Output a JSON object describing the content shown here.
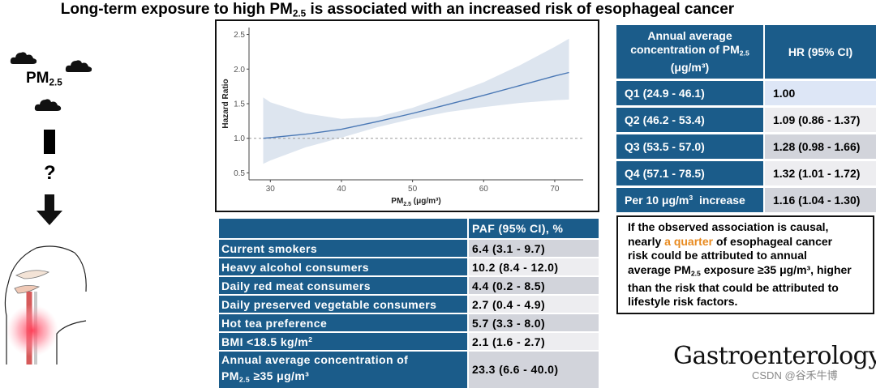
{
  "title": {
    "main": "Long-term exposure to high PM",
    "sub": "2.5",
    "rest": " is associated with an increased risk of esophageal cancer"
  },
  "left": {
    "pm_label": "PM",
    "pm_sub": "2.5",
    "question": "?"
  },
  "chart_data": {
    "type": "line",
    "x": [
      29,
      30,
      35,
      40,
      45,
      50,
      55,
      60,
      65,
      70,
      72
    ],
    "y": [
      1.0,
      1.01,
      1.06,
      1.13,
      1.24,
      1.36,
      1.49,
      1.62,
      1.76,
      1.9,
      1.95
    ],
    "ci_lower": [
      0.63,
      0.68,
      0.87,
      1.01,
      1.16,
      1.28,
      1.38,
      1.45,
      1.51,
      1.55,
      1.56
    ],
    "ci_upper": [
      1.59,
      1.52,
      1.36,
      1.28,
      1.31,
      1.44,
      1.62,
      1.81,
      2.05,
      2.32,
      2.44
    ],
    "reference_line": 1.0,
    "xlabel": "PM",
    "xlabel_sub": "2.5",
    "xlabel_unit": " (μg/m³)",
    "ylabel": "Hazard Ratio",
    "xlim": [
      27,
      74
    ],
    "ylim": [
      0.4,
      2.6
    ],
    "xticks": [
      30,
      40,
      50,
      60,
      70
    ],
    "yticks": [
      0.5,
      1.0,
      1.5,
      2.0,
      2.5
    ],
    "ytick_labels": [
      "0.5",
      "1.0",
      "1.5",
      "2.0",
      "2.5"
    ],
    "xtick_labels": [
      "30",
      "40",
      "50",
      "60",
      "70"
    ],
    "colors": {
      "line": "#4a78b5",
      "band": "#dde5ef",
      "ref": "#999999"
    }
  },
  "hr_table": {
    "header_conc": "Annual average concentration of PM",
    "header_conc_sub": "2.5",
    "header_conc_unit": "(μg/m³)",
    "header_hr": "HR (95% CI)",
    "rows": [
      {
        "label": "Q1 (24.9 - 46.1)",
        "value": "1.00",
        "bg": "#dde6f6"
      },
      {
        "label": "Q2 (46.2 - 53.4)",
        "value": "1.09 (0.86 - 1.37)",
        "bg": "#ededf0"
      },
      {
        "label": "Q3 (53.5 - 57.0)",
        "value": "1.28 (0.98 - 1.66)",
        "bg": "#d2d4db"
      },
      {
        "label": "Q4 (57.1 - 78.5)",
        "value": "1.32 (1.01 - 1.72)",
        "bg": "#ededf0"
      },
      {
        "label_pre": "Per 10 μg/m",
        "label_sup": "3",
        "label_post": "  increase",
        "value": "1.16 (1.04 - 1.30)",
        "bg": "#d2d4db"
      }
    ]
  },
  "note": {
    "l1": "If the observed association is causal,",
    "l2a": "nearly ",
    "l2b": "a quarter",
    "l2c": " of esophageal cancer",
    "l3": "risk could be attributed to annual",
    "l4a": "average PM",
    "l4sub": "2.5",
    "l4b": " exposure ≥35 μg/m³, higher",
    "l5": "than the risk that could be attributed to",
    "l6": "lifestyle risk factors."
  },
  "paf_table": {
    "header": "PAF (95% CI), %",
    "rows": [
      {
        "label": "Current smokers",
        "value": "6.4 (3.1 - 9.7)",
        "bg": "#d2d4db"
      },
      {
        "label": "Heavy alcohol consumers",
        "value": "10.2 (8.4 - 12.0)",
        "bg": "#ededf0"
      },
      {
        "label": "Daily red meat consumers",
        "value": "4.4 (0.2 - 8.5)",
        "bg": "#d2d4db"
      },
      {
        "label": "Daily preserved vegetable consumers",
        "value": "2.7 (0.4 - 4.9)",
        "bg": "#ededf0"
      },
      {
        "label": "Hot tea preference",
        "value": "5.7 (3.3 - 8.0)",
        "bg": "#d2d4db"
      },
      {
        "label_pre": "BMI <18.5 kg/m",
        "label_sup": "2",
        "value": "2.1 (1.6 - 2.7)",
        "bg": "#ededf0"
      }
    ],
    "last_row": {
      "l1": "Annual average concentration of",
      "l2a": "PM",
      "l2sub": "2.5",
      "l2b": " ≥35 μg/m³",
      "value": "23.3 (6.6 - 40.0)",
      "bg": "#d2d4db"
    }
  },
  "journal": "Gastroenterology",
  "watermark": "CSDN @谷禾牛博"
}
